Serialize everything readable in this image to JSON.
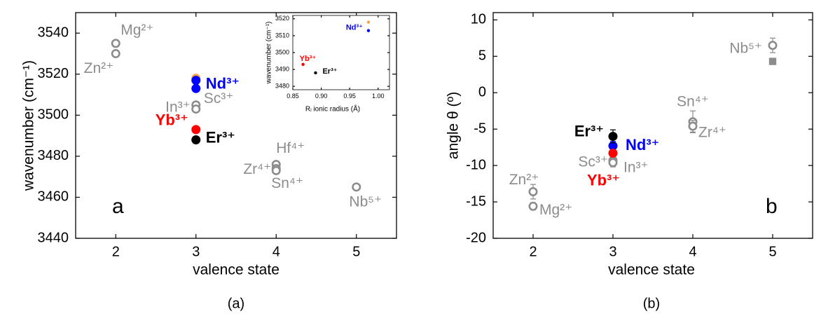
{
  "chart_data": [
    {
      "type": "scatter",
      "x_label": "valence state",
      "y_label": "wavenumber (cm⁻¹)",
      "panel_letter": "a",
      "caption": "(a)",
      "xlim": [
        1.5,
        5.5
      ],
      "xticks": [
        2,
        3,
        4,
        5
      ],
      "ylim": [
        3440,
        3550
      ],
      "yticks": [
        3440,
        3460,
        3480,
        3500,
        3520,
        3540
      ],
      "grid": false,
      "series": [
        {
          "label": "Mg²⁺",
          "color": "#8c8c8c",
          "marker": "open",
          "x": [
            2
          ],
          "values": [
            3535
          ]
        },
        {
          "label": "Zn²⁺",
          "color": "#8c8c8c",
          "marker": "open",
          "x": [
            2
          ],
          "values": [
            3530
          ]
        },
        {
          "label": "In³⁺",
          "color": "#8c8c8c",
          "marker": "open",
          "x": [
            3
          ],
          "values": [
            3505
          ]
        },
        {
          "label": "Sc³⁺",
          "color": "#8c8c8c",
          "marker": "open",
          "x": [
            3
          ],
          "values": [
            3503
          ]
        },
        {
          "color": "#f5a64a",
          "marker": "filled",
          "x": [
            3
          ],
          "values": [
            3518
          ]
        },
        {
          "label": "Nd³⁺",
          "color": "#0000ff",
          "marker": "filled",
          "bold": true,
          "x": [
            3,
            3
          ],
          "values": [
            3517,
            3513
          ]
        },
        {
          "label": "Yb³⁺",
          "color": "#ff0000",
          "marker": "filled",
          "bold": true,
          "x": [
            3
          ],
          "values": [
            3493
          ]
        },
        {
          "label": "Er³⁺",
          "color": "#000000",
          "marker": "filled",
          "bold": true,
          "x": [
            3
          ],
          "values": [
            3488
          ]
        },
        {
          "label": "Hf⁴⁺",
          "color": "#8c8c8c",
          "marker": "open",
          "x": [
            4
          ],
          "values": [
            3476
          ]
        },
        {
          "label": "Zr⁴⁺",
          "color": "#8c8c8c",
          "marker": "open",
          "x": [
            4
          ],
          "values": [
            3474
          ]
        },
        {
          "label": "Sn⁴⁺",
          "color": "#8c8c8c",
          "marker": "open",
          "x": [
            4
          ],
          "values": [
            3473
          ]
        },
        {
          "label": "Nb⁵⁺",
          "color": "#8c8c8c",
          "marker": "open",
          "x": [
            5
          ],
          "values": [
            3465
          ]
        }
      ]
    },
    {
      "type": "scatter",
      "x_label": "Rᵢ ionic radius (Å)",
      "y_label": "wavenumber (cm⁻¹)",
      "xlim": [
        0.85,
        1.02
      ],
      "xticks": [
        {
          "value": 0.85,
          "label": "0.85"
        },
        {
          "value": 0.9,
          "label": "0.90"
        },
        {
          "value": 0.95,
          "label": "0.95"
        },
        {
          "value": 1.0,
          "label": "1.00"
        }
      ],
      "ylim": [
        3478,
        3522
      ],
      "yticks": [
        3480,
        3490,
        3500,
        3510,
        3520
      ],
      "grid": false,
      "series": [
        {
          "color": "#f5a64a",
          "marker": "filled",
          "x": [
            0.983
          ],
          "values": [
            3518
          ]
        },
        {
          "label": "Nd³⁺",
          "color": "#0000ff",
          "marker": "filled",
          "bold": true,
          "x": [
            0.983
          ],
          "values": [
            3513
          ]
        },
        {
          "label": "Yb³⁺",
          "color": "#ff0000",
          "marker": "filled",
          "bold": true,
          "x": [
            0.868
          ],
          "values": [
            3493
          ]
        },
        {
          "label": "Er³⁺",
          "color": "#000000",
          "marker": "filled",
          "bold": true,
          "x": [
            0.89
          ],
          "values": [
            3488
          ]
        }
      ]
    },
    {
      "type": "scatter",
      "x_label": "valence state",
      "y_label": "angle θ (º)",
      "panel_letter": "b",
      "caption": "(b)",
      "xlim": [
        1.5,
        5.5
      ],
      "xticks": [
        2,
        3,
        4,
        5
      ],
      "ylim": [
        -20,
        11
      ],
      "yticks": [
        -20,
        -15,
        -10,
        -5,
        0,
        5,
        10
      ],
      "grid": false,
      "series": [
        {
          "label": "Zn²⁺",
          "color": "#8c8c8c",
          "marker": "open",
          "x": [
            2
          ],
          "values": [
            -13.6
          ],
          "errors": [
            1.0
          ]
        },
        {
          "label": "Mg²⁺",
          "color": "#8c8c8c",
          "marker": "open",
          "x": [
            2
          ],
          "values": [
            -15.6
          ],
          "errors": [
            0.5
          ]
        },
        {
          "label": "Sc³⁺",
          "color": "#8c8c8c",
          "marker": "open",
          "x": [
            3
          ],
          "values": [
            -9.3
          ],
          "errors": [
            0.6
          ]
        },
        {
          "label": "In³⁺",
          "color": "#8c8c8c",
          "marker": "open",
          "x": [
            3
          ],
          "values": [
            -9.6
          ],
          "errors": [
            0.6
          ]
        },
        {
          "label": "Nd³⁺",
          "color": "#0000ff",
          "marker": "filled",
          "bold": true,
          "x": [
            3
          ],
          "values": [
            -7.3
          ],
          "errors": [
            0.6
          ]
        },
        {
          "label": "Yb³⁺",
          "color": "#ff0000",
          "marker": "filled",
          "bold": true,
          "x": [
            3
          ],
          "values": [
            -8.3
          ]
        },
        {
          "label": "Er³⁺",
          "color": "#000000",
          "marker": "filled",
          "bold": true,
          "x": [
            3
          ],
          "values": [
            -6
          ],
          "errors": [
            0.9
          ]
        },
        {
          "label": "Sn⁴⁺",
          "color": "#8c8c8c",
          "marker": "open",
          "x": [
            4
          ],
          "values": [
            -4
          ],
          "errors": [
            1.5
          ]
        },
        {
          "label": "Zr⁴⁺",
          "color": "#8c8c8c",
          "marker": "open",
          "x": [
            4
          ],
          "values": [
            -4.6
          ],
          "errors": [
            0.8
          ]
        },
        {
          "label": "Nb⁵⁺",
          "color": "#8c8c8c",
          "marker": "open",
          "x": [
            5
          ],
          "values": [
            6.5
          ],
          "errors": [
            1.0
          ]
        },
        {
          "color": "#8c8c8c",
          "marker": "square",
          "x": [
            5
          ],
          "values": [
            4.3
          ]
        }
      ]
    }
  ]
}
